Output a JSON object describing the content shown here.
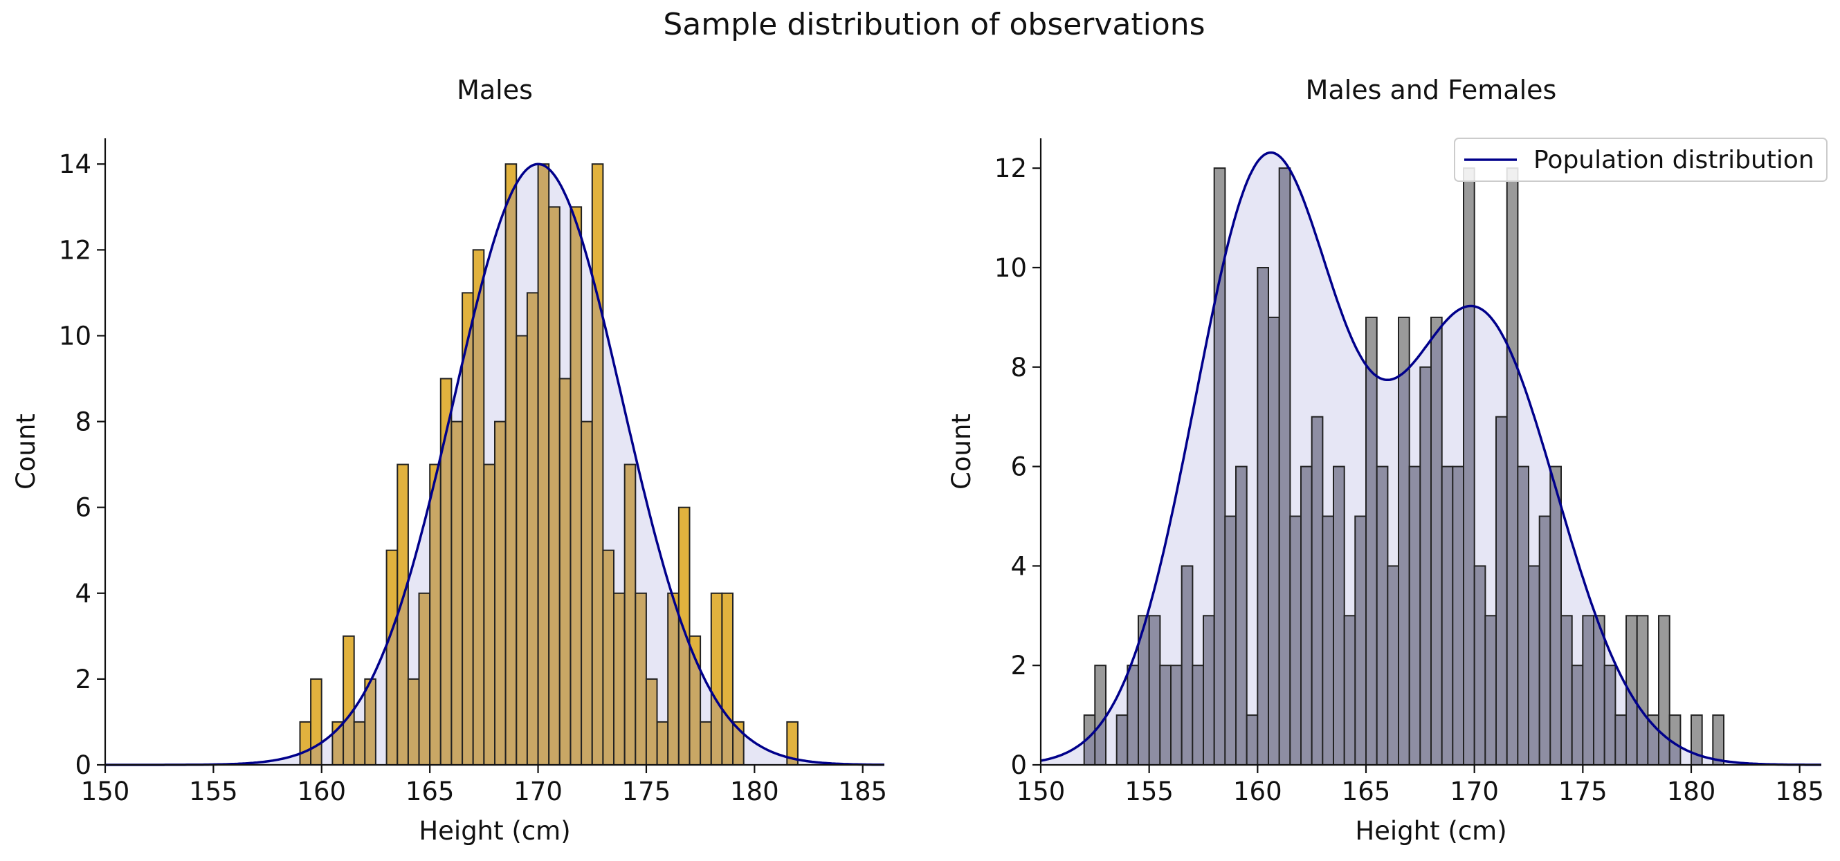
{
  "figure": {
    "title": "Sample distribution of observations"
  },
  "chart_data": [
    {
      "type": "bar",
      "title": "Males",
      "xlabel": "Height (cm)",
      "ylabel": "Count",
      "xlim": [
        150,
        186
      ],
      "ylim": [
        0,
        14.6
      ],
      "xticks": [
        150,
        155,
        160,
        165,
        170,
        175,
        180,
        185
      ],
      "yticks": [
        0,
        2,
        4,
        6,
        8,
        10,
        12,
        14
      ],
      "bin_width": 0.5,
      "bar_color": "#e1b23e",
      "overlap_color": "#c9a765",
      "curve_color": "#00008b",
      "fill_color": "#e6e6f5",
      "bins_left": [
        159.0,
        159.5,
        160.5,
        161.0,
        161.5,
        162.0,
        163.0,
        163.5,
        164.0,
        164.5,
        165.0,
        165.5,
        166.0,
        166.5,
        167.0,
        167.5,
        168.0,
        168.5,
        169.0,
        169.5,
        170.0,
        170.5,
        171.0,
        171.5,
        172.0,
        172.5,
        173.0,
        173.5,
        174.0,
        174.5,
        175.0,
        175.5,
        176.0,
        176.5,
        177.0,
        177.5,
        178.0,
        178.5,
        179.0,
        181.5
      ],
      "counts": [
        1,
        2,
        1,
        3,
        1,
        2,
        5,
        7,
        2,
        4,
        7,
        9,
        8,
        11,
        12,
        7,
        8,
        14,
        10,
        11,
        14,
        13,
        9,
        13,
        8,
        14,
        5,
        4,
        7,
        4,
        2,
        1,
        4,
        6,
        3,
        1,
        4,
        4,
        1,
        1
      ],
      "population_curve": {
        "type": "normal",
        "mean": 170,
        "sd": 3.9,
        "peak": 14
      },
      "legend": null
    },
    {
      "type": "bar",
      "title": "Males and Females",
      "xlabel": "Height (cm)",
      "ylabel": "Count",
      "xlim": [
        150,
        186
      ],
      "ylim": [
        0,
        12.6
      ],
      "xticks": [
        150,
        155,
        160,
        165,
        170,
        175,
        180,
        185
      ],
      "yticks": [
        0,
        2,
        4,
        6,
        8,
        10,
        12
      ],
      "bin_width": 0.5,
      "bar_color": "#9a9a9a",
      "overlap_color": "#8e8ea3",
      "curve_color": "#00008b",
      "fill_color": "#e6e6f5",
      "bins_left": [
        152.0,
        152.5,
        153.5,
        154.0,
        154.5,
        155.0,
        155.5,
        156.0,
        156.5,
        157.0,
        157.5,
        158.0,
        158.5,
        159.0,
        159.5,
        160.0,
        160.5,
        161.0,
        161.5,
        162.0,
        162.5,
        163.0,
        163.5,
        164.0,
        164.5,
        165.0,
        165.5,
        166.0,
        166.5,
        167.0,
        167.5,
        168.0,
        168.5,
        169.0,
        169.5,
        170.0,
        170.5,
        171.0,
        171.5,
        172.0,
        172.5,
        173.0,
        173.5,
        174.0,
        174.5,
        175.0,
        175.5,
        176.0,
        176.5,
        177.0,
        177.5,
        178.0,
        178.5,
        179.0,
        180.0,
        181.0
      ],
      "counts": [
        1,
        2,
        1,
        2,
        3,
        3,
        2,
        2,
        4,
        2,
        3,
        12,
        5,
        6,
        1,
        10,
        9,
        12,
        5,
        6,
        7,
        5,
        6,
        3,
        5,
        9,
        6,
        4,
        9,
        6,
        8,
        9,
        6,
        6,
        12,
        4,
        3,
        7,
        12,
        6,
        4,
        5,
        6,
        3,
        2,
        3,
        3,
        2,
        1,
        3,
        3,
        1,
        3,
        1,
        1,
        1
      ],
      "population_curve": {
        "type": "mixture",
        "components": [
          {
            "mean": 160.4,
            "sd": 3.3,
            "weight": 12.0
          },
          {
            "mean": 170.1,
            "sd": 3.7,
            "weight": 9.05
          }
        ]
      },
      "legend": {
        "entries": [
          "Population distribution"
        ],
        "location": "upper-right"
      }
    }
  ]
}
